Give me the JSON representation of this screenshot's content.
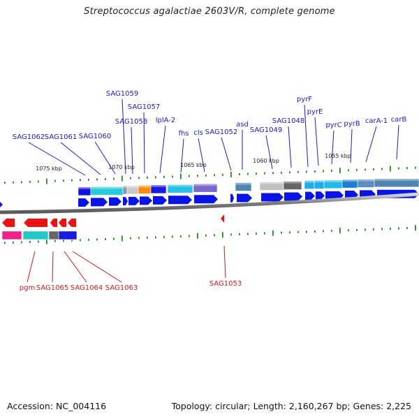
{
  "title": "Streptococcus agalactiae 2603V/R, complete genome",
  "accession": "Accession: NC_004116",
  "summary": "Topology: circular; Length: 2,160,267 bp; Genes: 2,225",
  "colors": {
    "forward_label": "#1a1acc",
    "reverse_label": "#cc1a1a",
    "forward_gene": "#0a14e6",
    "reverse_gene": "#ee1111",
    "backbone": "#8c8c8c",
    "tick": "#1e8c1e"
  },
  "kbp_labels": [
    "1075 kbp",
    "1070 kbp",
    "1065 kbp",
    "1060 kbp",
    "1055 kbp"
  ],
  "forward_genes": [
    "SAG1062",
    "SAG1061",
    "SAG1060",
    "SAG1059",
    "SAG1058",
    "SAG1057",
    "lplA-2",
    "fhs",
    "cls",
    "SAG1052",
    "asd",
    "SAG1049",
    "SAG1048",
    "pyrF",
    "pyrE",
    "pyrC",
    "pyrB",
    "carA-1",
    "carB"
  ],
  "reverse_genes": [
    "pgm",
    "SAG1065",
    "SAG1064",
    "SAG1063",
    "SAG1053"
  ]
}
